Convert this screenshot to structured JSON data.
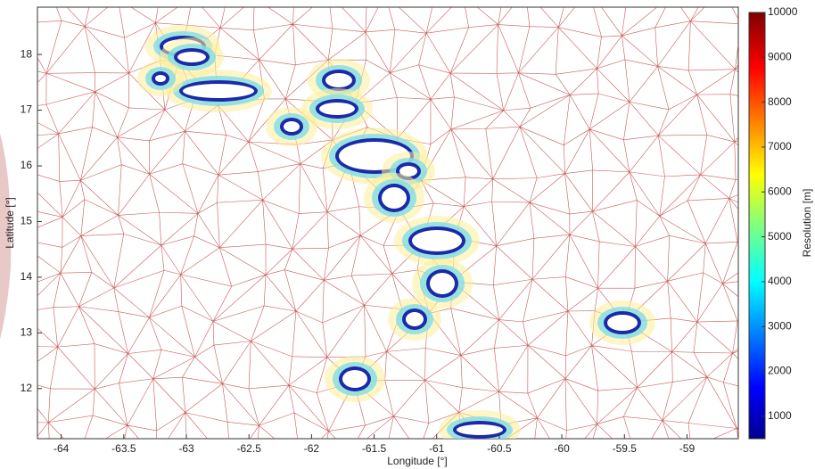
{
  "chart_data": {
    "type": "mesh",
    "xlabel": "Longitude [°]",
    "ylabel": "Latitude [°]",
    "colorbar_label": "Resolution [m]",
    "xlim": [
      -64.19,
      -58.59
    ],
    "xticks": [
      -64,
      -63.5,
      -63,
      -62.5,
      -62,
      -61.5,
      -61,
      -60.5,
      -60,
      -59.5,
      -59
    ],
    "ylim": [
      11.1,
      18.85
    ],
    "yticks": [
      12,
      13,
      14,
      15,
      16,
      17,
      18
    ],
    "clim": [
      500,
      10000
    ],
    "cticks": [
      1000,
      2000,
      3000,
      4000,
      5000,
      6000,
      7000,
      8000,
      9000,
      10000
    ],
    "colormap": "jet",
    "mesh_color": "#b8322f"
  }
}
